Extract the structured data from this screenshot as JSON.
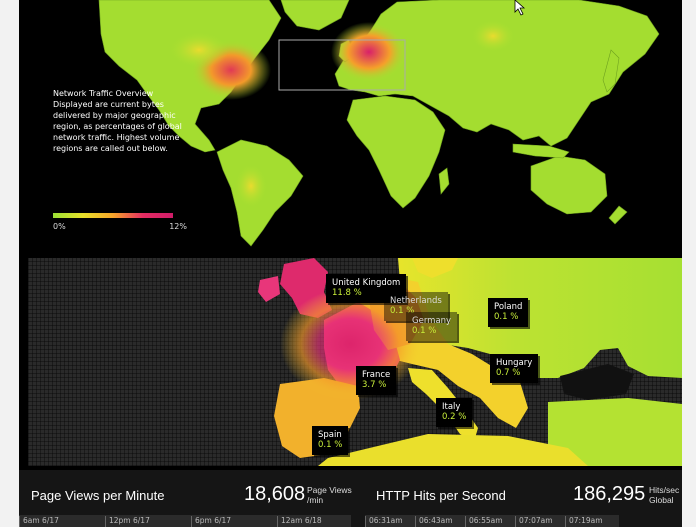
{
  "colors": {
    "low": "#9be034",
    "mid": "#e8e02a",
    "high": "#d01c69",
    "background": "#000000"
  },
  "overview": {
    "lines": [
      "Network Traffic Overview",
      "Displayed are current bytes",
      "delivered by major geographic",
      "region, as percentages of global",
      "network traffic. Highest volume",
      "regions are called out below."
    ]
  },
  "legend": {
    "min": "0%",
    "max": "12%"
  },
  "callouts": [
    {
      "name": "United Kingdom",
      "value": "11.8 %"
    },
    {
      "name": "Netherlands",
      "value": "0.1 %"
    },
    {
      "name": "Germany",
      "value": "0.1 %"
    },
    {
      "name": "Poland",
      "value": "0.1 %"
    },
    {
      "name": "France",
      "value": "3.7 %"
    },
    {
      "name": "Hungary",
      "value": "0.7 %"
    },
    {
      "name": "Italy",
      "value": "0.2 %"
    },
    {
      "name": "Spain",
      "value": "0.1 %"
    }
  ],
  "stats": {
    "page_views": {
      "title": "Page Views per Minute",
      "value": "18,608",
      "unit_line1": "Page Views",
      "unit_line2": "/min"
    },
    "http_hits": {
      "title": "HTTP Hits per Second",
      "value": "186,295",
      "unit_line1": "Hits/sec",
      "unit_line2": "Global"
    },
    "page_views_ticks": [
      "6am 6/17",
      "12pm 6/17",
      "6pm 6/17",
      "12am 6/18"
    ],
    "http_hits_ticks": [
      "06:31am",
      "06:43am",
      "06:55am",
      "07:07am",
      "07:19am"
    ]
  }
}
